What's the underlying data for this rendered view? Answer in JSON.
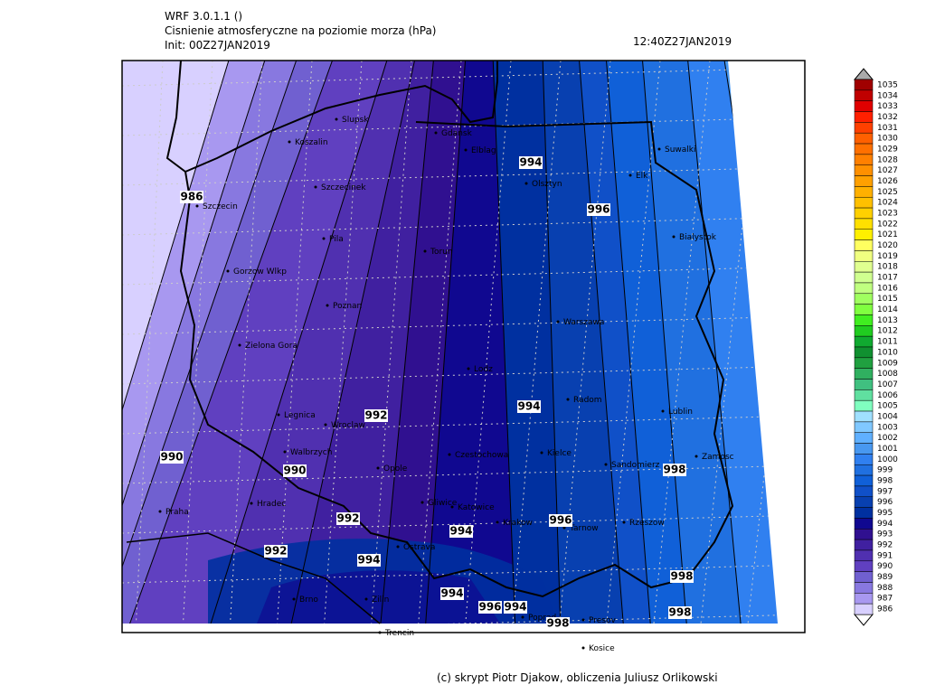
{
  "header": {
    "lines": [
      "WRF 3.0.1.1 ()",
      "Cisnienie atmosferyczne na poziomie morza (hPa)",
      "Init: 00Z27JAN2019"
    ],
    "valid_time": "12:40Z27JAN2019"
  },
  "cities": [
    "Slupsk",
    "Koszalin",
    "Gdansk",
    "Elblag",
    "Olsztyn",
    "Suwalki",
    "Elk",
    "Szczecin",
    "Szczecinek",
    "Bialystok",
    "Pila",
    "Torun",
    "Gorzow Wlkp",
    "Poznan",
    "Warszawa",
    "Zielona Gora",
    "Lodz",
    "Radom",
    "Lublin",
    "Legnica",
    "Wroclaw",
    "Walbrzych",
    "Czestochowa",
    "Kielce",
    "Zamosc",
    "Opole",
    "Sandomierz",
    "Praha",
    "Hradec",
    "Gliwice",
    "Katowice",
    "Krakow",
    "Tarnow",
    "Rzeszow",
    "Ostrava",
    "Brno",
    "Zilin",
    "Trencin",
    "Poprad",
    "Presov",
    "Kosice"
  ],
  "contour_labels": [
    986,
    994,
    996,
    992,
    994,
    990,
    990,
    998,
    992,
    996,
    994,
    992,
    994,
    998,
    994,
    996,
    994,
    998,
    998
  ],
  "colorbar": [
    {
      "value": 1035,
      "color": "#a00000"
    },
    {
      "value": 1034,
      "color": "#c00000"
    },
    {
      "value": 1033,
      "color": "#e00000"
    },
    {
      "value": 1032,
      "color": "#ff2000"
    },
    {
      "value": 1031,
      "color": "#ff4000"
    },
    {
      "value": 1030,
      "color": "#ff6000"
    },
    {
      "value": 1029,
      "color": "#ff7000"
    },
    {
      "value": 1028,
      "color": "#ff8000"
    },
    {
      "value": 1027,
      "color": "#ff9000"
    },
    {
      "value": 1026,
      "color": "#ffa000"
    },
    {
      "value": 1025,
      "color": "#ffb000"
    },
    {
      "value": 1024,
      "color": "#ffc000"
    },
    {
      "value": 1023,
      "color": "#ffd000"
    },
    {
      "value": 1022,
      "color": "#ffe000"
    },
    {
      "value": 1021,
      "color": "#fff000"
    },
    {
      "value": 1020,
      "color": "#ffff60"
    },
    {
      "value": 1019,
      "color": "#f0ff80"
    },
    {
      "value": 1018,
      "color": "#e0ff90"
    },
    {
      "value": 1017,
      "color": "#d0ff90"
    },
    {
      "value": 1016,
      "color": "#c0ff80"
    },
    {
      "value": 1015,
      "color": "#a0ff60"
    },
    {
      "value": 1014,
      "color": "#80ff40"
    },
    {
      "value": 1013,
      "color": "#40ee20"
    },
    {
      "value": 1012,
      "color": "#20cc20"
    },
    {
      "value": 1011,
      "color": "#10aa30"
    },
    {
      "value": 1010,
      "color": "#109030"
    },
    {
      "value": 1009,
      "color": "#20a040"
    },
    {
      "value": 1008,
      "color": "#30b060"
    },
    {
      "value": 1007,
      "color": "#40c080"
    },
    {
      "value": 1006,
      "color": "#60e0a0"
    },
    {
      "value": 1005,
      "color": "#80ffc0"
    },
    {
      "value": 1004,
      "color": "#a0e0ff"
    },
    {
      "value": 1003,
      "color": "#80c8ff"
    },
    {
      "value": 1002,
      "color": "#60b0ff"
    },
    {
      "value": 1001,
      "color": "#4898f0"
    },
    {
      "value": 1000,
      "color": "#3080f0"
    },
    {
      "value": 999,
      "color": "#2070e0"
    },
    {
      "value": 998,
      "color": "#1060d8"
    },
    {
      "value": 997,
      "color": "#1050c8"
    },
    {
      "value": 996,
      "color": "#0840b0"
    },
    {
      "value": 995,
      "color": "#0030a0"
    },
    {
      "value": 994,
      "color": "#100890"
    },
    {
      "value": 993,
      "color": "#301090"
    },
    {
      "value": 992,
      "color": "#4020a0"
    },
    {
      "value": 991,
      "color": "#5030b0"
    },
    {
      "value": 990,
      "color": "#6040c0"
    },
    {
      "value": 989,
      "color": "#7060d0"
    },
    {
      "value": 988,
      "color": "#8878e0"
    },
    {
      "value": 987,
      "color": "#a898f0"
    },
    {
      "value": 986,
      "color": "#d8d0ff"
    }
  ],
  "footer": "(c) skrypt Piotr Djakow, obliczenia Juliusz Orlikowski"
}
